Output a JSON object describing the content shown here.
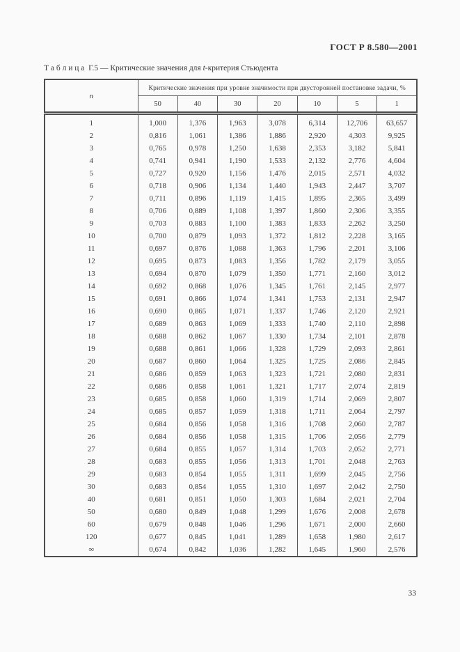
{
  "page": {
    "header_right": "ГОСТ Р 8.580—2001",
    "page_number": "33"
  },
  "caption": {
    "prefix": "Т а б л и ц а  Г.5 — Критические значения для ",
    "italic": "t",
    "suffix": "-критерия Стьюдента"
  },
  "table": {
    "col0_header": "n",
    "span_header": "Критические значения при уровне значимости при двусторонней постановке задачи, %",
    "level_headers": [
      "50",
      "40",
      "30",
      "20",
      "10",
      "5",
      "1"
    ],
    "rows": [
      {
        "n": "1",
        "values": [
          "1,000",
          "1,376",
          "1,963",
          "3,078",
          "6,314",
          "12,706",
          "63,657"
        ]
      },
      {
        "n": "2",
        "values": [
          "0,816",
          "1,061",
          "1,386",
          "1,886",
          "2,920",
          "4,303",
          "9,925"
        ]
      },
      {
        "n": "3",
        "values": [
          "0,765",
          "0,978",
          "1,250",
          "1,638",
          "2,353",
          "3,182",
          "5,841"
        ]
      },
      {
        "n": "4",
        "values": [
          "0,741",
          "0,941",
          "1,190",
          "1,533",
          "2,132",
          "2,776",
          "4,604"
        ]
      },
      {
        "n": "5",
        "values": [
          "0,727",
          "0,920",
          "1,156",
          "1,476",
          "2,015",
          "2,571",
          "4,032"
        ]
      },
      {
        "n": "6",
        "values": [
          "0,718",
          "0,906",
          "1,134",
          "1,440",
          "1,943",
          "2,447",
          "3,707"
        ]
      },
      {
        "n": "7",
        "values": [
          "0,711",
          "0,896",
          "1,119",
          "1,415",
          "1,895",
          "2,365",
          "3,499"
        ]
      },
      {
        "n": "8",
        "values": [
          "0,706",
          "0,889",
          "1,108",
          "1,397",
          "1,860",
          "2,306",
          "3,355"
        ]
      },
      {
        "n": "9",
        "values": [
          "0,703",
          "0,883",
          "1,100",
          "1,383",
          "1,833",
          "2,262",
          "3,250"
        ]
      },
      {
        "n": "10",
        "values": [
          "0,700",
          "0,879",
          "1,093",
          "1,372",
          "1,812",
          "2,228",
          "3,165"
        ]
      },
      {
        "n": "11",
        "values": [
          "0,697",
          "0,876",
          "1,088",
          "1,363",
          "1,796",
          "2,201",
          "3,106"
        ]
      },
      {
        "n": "12",
        "values": [
          "0,695",
          "0,873",
          "1,083",
          "1,356",
          "1,782",
          "2,179",
          "3,055"
        ]
      },
      {
        "n": "13",
        "values": [
          "0,694",
          "0,870",
          "1,079",
          "1,350",
          "1,771",
          "2,160",
          "3,012"
        ]
      },
      {
        "n": "14",
        "values": [
          "0,692",
          "0,868",
          "1,076",
          "1,345",
          "1,761",
          "2,145",
          "2,977"
        ]
      },
      {
        "n": "15",
        "values": [
          "0,691",
          "0,866",
          "1,074",
          "1,341",
          "1,753",
          "2,131",
          "2,947"
        ]
      },
      {
        "n": "16",
        "values": [
          "0,690",
          "0,865",
          "1,071",
          "1,337",
          "1,746",
          "2,120",
          "2,921"
        ]
      },
      {
        "n": "17",
        "values": [
          "0,689",
          "0,863",
          "1,069",
          "1,333",
          "1,740",
          "2,110",
          "2,898"
        ]
      },
      {
        "n": "18",
        "values": [
          "0,688",
          "0,862",
          "1,067",
          "1,330",
          "1,734",
          "2,101",
          "2,878"
        ]
      },
      {
        "n": "19",
        "values": [
          "0,688",
          "0,861",
          "1,066",
          "1,328",
          "1,729",
          "2,093",
          "2,861"
        ]
      },
      {
        "n": "20",
        "values": [
          "0,687",
          "0,860",
          "1,064",
          "1,325",
          "1,725",
          "2,086",
          "2,845"
        ]
      },
      {
        "n": "21",
        "values": [
          "0,686",
          "0,859",
          "1,063",
          "1,323",
          "1,721",
          "2,080",
          "2,831"
        ]
      },
      {
        "n": "22",
        "values": [
          "0,686",
          "0,858",
          "1,061",
          "1,321",
          "1,717",
          "2,074",
          "2,819"
        ]
      },
      {
        "n": "23",
        "values": [
          "0,685",
          "0,858",
          "1,060",
          "1,319",
          "1,714",
          "2,069",
          "2,807"
        ]
      },
      {
        "n": "24",
        "values": [
          "0,685",
          "0,857",
          "1,059",
          "1,318",
          "1,711",
          "2,064",
          "2,797"
        ]
      },
      {
        "n": "25",
        "values": [
          "0,684",
          "0,856",
          "1,058",
          "1,316",
          "1,708",
          "2,060",
          "2,787"
        ]
      },
      {
        "n": "26",
        "values": [
          "0,684",
          "0,856",
          "1,058",
          "1,315",
          "1,706",
          "2,056",
          "2,779"
        ]
      },
      {
        "n": "27",
        "values": [
          "0,684",
          "0,855",
          "1,057",
          "1,314",
          "1,703",
          "2,052",
          "2,771"
        ]
      },
      {
        "n": "28",
        "values": [
          "0,683",
          "0,855",
          "1,056",
          "1,313",
          "1,701",
          "2,048",
          "2,763"
        ]
      },
      {
        "n": "29",
        "values": [
          "0,683",
          "0,854",
          "1,055",
          "1,311",
          "1,699",
          "2,045",
          "2,756"
        ]
      },
      {
        "n": "30",
        "values": [
          "0,683",
          "0,854",
          "1,055",
          "1,310",
          "1,697",
          "2,042",
          "2,750"
        ]
      },
      {
        "n": "40",
        "values": [
          "0,681",
          "0,851",
          "1,050",
          "1,303",
          "1,684",
          "2,021",
          "2,704"
        ]
      },
      {
        "n": "50",
        "values": [
          "0,680",
          "0,849",
          "1,048",
          "1,299",
          "1,676",
          "2,008",
          "2,678"
        ]
      },
      {
        "n": "60",
        "values": [
          "0,679",
          "0,848",
          "1,046",
          "1,296",
          "1,671",
          "2,000",
          "2,660"
        ]
      },
      {
        "n": "120",
        "values": [
          "0,677",
          "0,845",
          "1,041",
          "1,289",
          "1,658",
          "1,980",
          "2,617"
        ]
      },
      {
        "n": "∞",
        "values": [
          "0,674",
          "0,842",
          "1,036",
          "1,282",
          "1,645",
          "1,960",
          "2,576"
        ]
      }
    ]
  }
}
